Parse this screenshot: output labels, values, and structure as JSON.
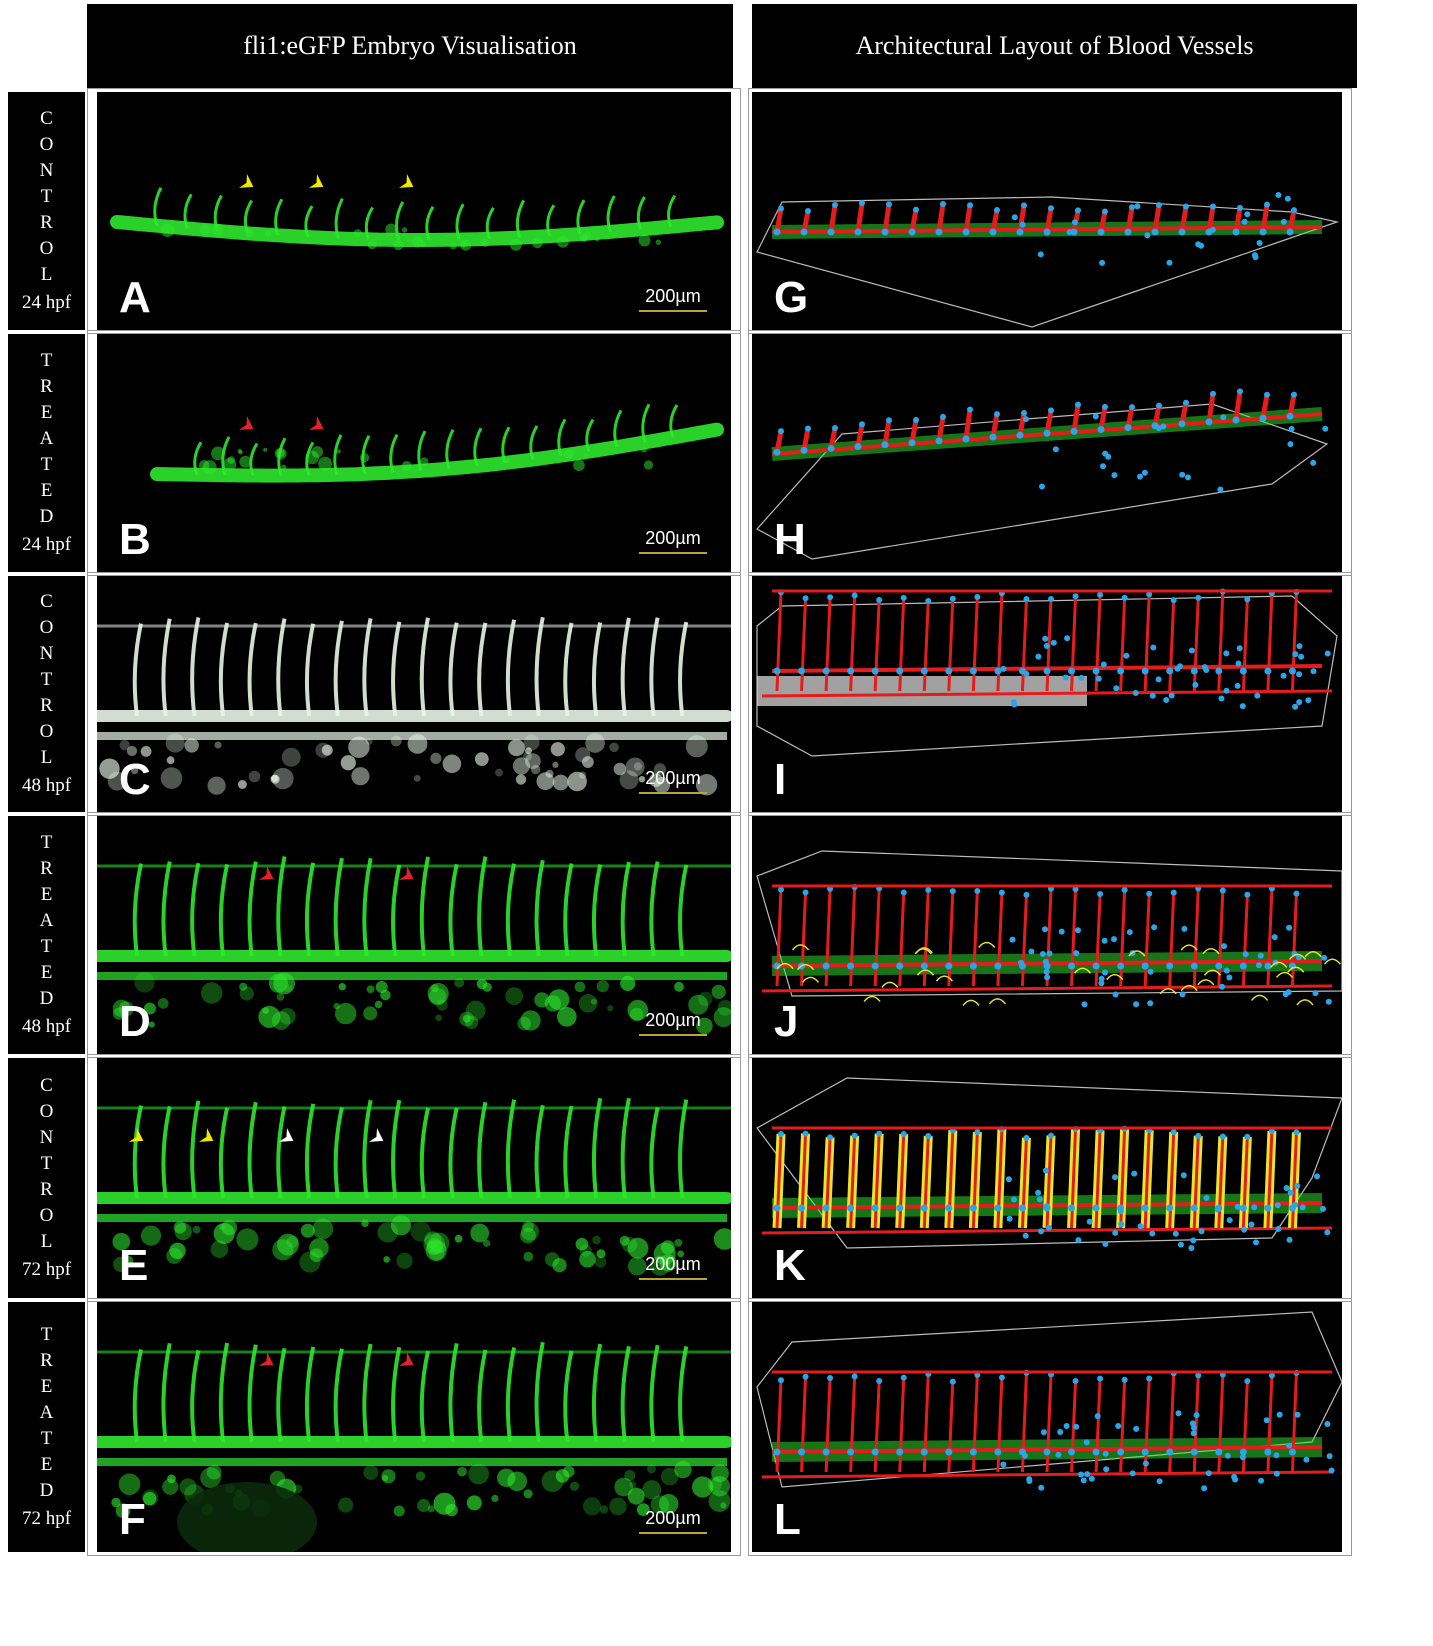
{
  "headers": {
    "left": "fli1:eGFP Embryo Visualisation",
    "right": "Architectural Layout of Blood Vessels"
  },
  "rows": [
    {
      "letters": [
        "C",
        "O",
        "N",
        "T",
        "R",
        "O",
        "L"
      ],
      "time": "24 hpf"
    },
    {
      "letters": [
        "T",
        "R",
        "E",
        "A",
        "T",
        "E",
        "D"
      ],
      "time": "24 hpf"
    },
    {
      "letters": [
        "C",
        "O",
        "N",
        "T",
        "R",
        "O",
        "L"
      ],
      "time": "48 hpf"
    },
    {
      "letters": [
        "T",
        "R",
        "E",
        "A",
        "T",
        "E",
        "D"
      ],
      "time": "48 hpf"
    },
    {
      "letters": [
        "C",
        "O",
        "N",
        "T",
        "R",
        "O",
        "L"
      ],
      "time": "72 hpf"
    },
    {
      "letters": [
        "T",
        "R",
        "E",
        "A",
        "T",
        "E",
        "D"
      ],
      "time": "72 hpf"
    }
  ],
  "left_panels": [
    {
      "label": "A",
      "scale": "200µm",
      "tone": "#2ee82e",
      "arrow_color": "#f0e800",
      "arrows": 3
    },
    {
      "label": "B",
      "scale": "200µm",
      "tone": "#2ee82e",
      "arrow_color": "#e8202a",
      "arrows": 2
    },
    {
      "label": "C",
      "scale": "200µm",
      "tone": "#e8f5e8",
      "arrow_color": "",
      "arrows": 0
    },
    {
      "label": "D",
      "scale": "200µm",
      "tone": "#2ee82e",
      "arrow_color": "#e8202a",
      "arrows": 2
    },
    {
      "label": "E",
      "scale": "200µm",
      "tone": "#2ee82e",
      "arrow_color": "#f0e800",
      "arrows": 4
    },
    {
      "label": "F",
      "scale": "200µm",
      "tone": "#2ee82e",
      "arrow_color": "#e8202a",
      "arrows": 2
    }
  ],
  "right_panels": [
    {
      "label": "G"
    },
    {
      "label": "H"
    },
    {
      "label": "I"
    },
    {
      "label": "J"
    },
    {
      "label": "K"
    },
    {
      "label": "L"
    }
  ],
  "colors": {
    "vessel_green": "#2ee82e",
    "skeleton_red": "#e51c1c",
    "node_blue": "#2aa6e8",
    "outline_yellow": "#e6e62a",
    "hull_grey": "#bbbbbb"
  }
}
